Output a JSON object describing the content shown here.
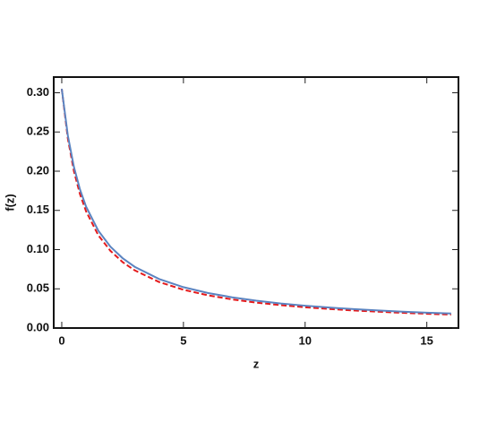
{
  "chart_data": {
    "type": "line",
    "xlabel": "z",
    "ylabel": "f(z)",
    "x": [
      0,
      0.25,
      0.5,
      0.75,
      1,
      1.5,
      2,
      2.5,
      3,
      4,
      5,
      6,
      7,
      8,
      9,
      10,
      11,
      12,
      13,
      14,
      15,
      16
    ],
    "series": [
      {
        "color": "#e41a1c",
        "style": "dashed",
        "values": [
          0.305,
          0.2416,
          0.2,
          0.1706,
          0.1488,
          0.1184,
          0.0984,
          0.0841,
          0.0735,
          0.0587,
          0.0488,
          0.0418,
          0.0365,
          0.0324,
          0.0292,
          0.0265,
          0.0243,
          0.0224,
          0.0208,
          0.0194,
          0.0182,
          0.0171
        ]
      },
      {
        "color": "#5b84c1",
        "style": "solid",
        "values": [
          0.305,
          0.2455,
          0.2054,
          0.1766,
          0.1548,
          0.1242,
          0.1037,
          0.0891,
          0.078,
          0.0625,
          0.0521,
          0.0447,
          0.0392,
          0.0348,
          0.0313,
          0.0285,
          0.0261,
          0.0241,
          0.0224,
          0.0209,
          0.0196,
          0.0185
        ]
      }
    ],
    "xlim": [
      -0.33,
      16.3
    ],
    "ylim": [
      0,
      0.32
    ],
    "xticks": [
      0,
      5,
      10,
      15
    ],
    "yticks": [
      {
        "value": 0,
        "label": "0.00"
      },
      {
        "value": 0.05,
        "label": "0.05"
      },
      {
        "value": 0.1,
        "label": "0.10"
      },
      {
        "value": 0.15,
        "label": "0.15"
      },
      {
        "value": 0.2,
        "label": "0.20"
      },
      {
        "value": 0.25,
        "label": "0.25"
      },
      {
        "value": 0.3,
        "label": "0.30"
      }
    ]
  }
}
